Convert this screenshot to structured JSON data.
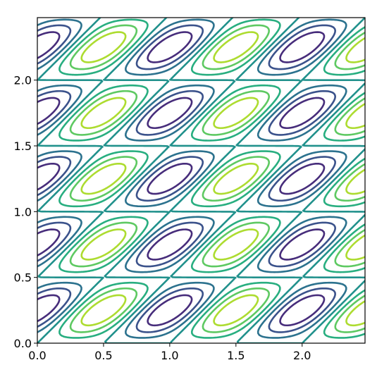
{
  "chart_data": {
    "type": "contour",
    "xlim": [
      0,
      2.475
    ],
    "ylim": [
      0,
      2.475
    ],
    "xticks": [
      {
        "value": 0,
        "label": "0.0"
      },
      {
        "value": 0.5,
        "label": "0.5"
      },
      {
        "value": 1,
        "label": "1.0"
      },
      {
        "value": 1.5,
        "label": "1.5"
      },
      {
        "value": 2,
        "label": "2.0"
      }
    ],
    "yticks": [
      {
        "value": 0,
        "label": "0.0"
      },
      {
        "value": 0.5,
        "label": "0.5"
      },
      {
        "value": 1,
        "label": "1.0"
      },
      {
        "value": 1.5,
        "label": "1.5"
      },
      {
        "value": 2,
        "label": "2.0"
      }
    ],
    "levels": [
      -0.75,
      -0.5,
      -0.25,
      0,
      0.25,
      0.5,
      0.75
    ],
    "colors": [
      "#472d7b",
      "#3b528b",
      "#2c728e",
      "#21918c",
      "#28ae80",
      "#5ec962",
      "#addc30"
    ]
  }
}
